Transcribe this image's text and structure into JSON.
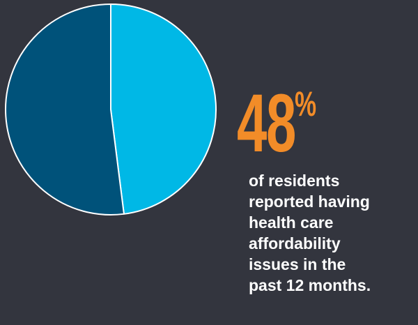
{
  "stat": {
    "value": "48",
    "unit": "%"
  },
  "caption": {
    "lines": [
      "of residents",
      "reported having",
      "health care",
      "affordability",
      "issues in the",
      "past 12 months."
    ]
  },
  "colors": {
    "background": "#33353e",
    "accent": "#f28c28",
    "text": "#ffffff",
    "slice_highlight": "#00b8e6",
    "slice_rest": "#00527a",
    "slice_border": "#ffffff"
  },
  "chart_data": {
    "type": "pie",
    "title": "",
    "start_angle_deg": 0,
    "direction": "clockwise",
    "slices": [
      {
        "value": 48,
        "color": "#00b8e6"
      },
      {
        "value": 52,
        "color": "#00527a"
      }
    ]
  }
}
